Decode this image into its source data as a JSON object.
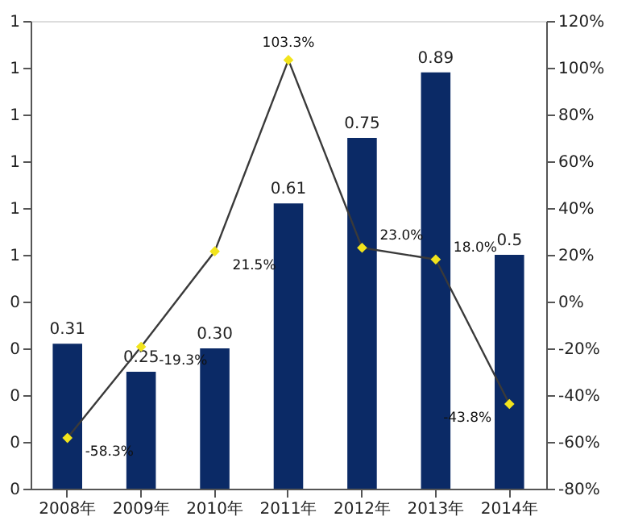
{
  "chart_data": {
    "type": "bar",
    "categories": [
      "2008年",
      "2009年",
      "2010年",
      "2011年",
      "2012年",
      "2013年",
      "2014年"
    ],
    "series": [
      {
        "color": "#0b2a66",
        "values": [
          0.31,
          0.25,
          0.3,
          0.61,
          0.75,
          0.89,
          0.5
        ],
        "value_labels": [
          "0.31",
          "0.25",
          "0.30",
          "0.61",
          "0.75",
          "0.89",
          "0.5"
        ]
      },
      {
        "type": "line",
        "axis": "y2",
        "color": "#3a3a3a",
        "colors": [
          "#f2e41c",
          "#f2e41c",
          "#f2e41c",
          "#f2e41c",
          "#f2e41c",
          "#f2e41c",
          "#f2e41c"
        ],
        "marker": "diamond",
        "values": [
          -58.3,
          -19.3,
          21.5,
          103.3,
          23.0,
          18.0,
          -43.8
        ],
        "value_labels": [
          "-58.3%",
          "-19.3%",
          "21.5%",
          "103.3%",
          "23.0%",
          "18.0%",
          "-43.8%"
        ]
      }
    ],
    "ylim": [
      0,
      1.0
    ],
    "yticks": [
      0,
      {
        "value": 0.1,
        "label": "0"
      },
      {
        "value": 0.2,
        "label": "0"
      },
      {
        "value": 0.3,
        "label": "0"
      },
      {
        "value": 0.4,
        "label": "0"
      },
      {
        "value": 0.5,
        "label": "1"
      },
      {
        "value": 0.6,
        "label": "1"
      },
      {
        "value": 0.7,
        "label": "1"
      },
      {
        "value": 0.8,
        "label": "1"
      },
      {
        "value": 0.9,
        "label": "1"
      },
      {
        "value": 1.0,
        "label": "1"
      }
    ],
    "y2lim": [
      -80,
      120
    ],
    "y2ticks": [
      {
        "value": -80,
        "label": "-80%"
      },
      {
        "value": -60,
        "label": "-60%"
      },
      {
        "value": -40,
        "label": "-40%"
      },
      {
        "value": -20,
        "label": "-20%"
      },
      {
        "value": 0,
        "label": "0%"
      },
      {
        "value": 20,
        "label": "20%"
      },
      {
        "value": 40,
        "label": "40%"
      },
      {
        "value": 60,
        "label": "60%"
      },
      {
        "value": 80,
        "label": "80%"
      },
      {
        "value": 100,
        "label": "100%"
      },
      {
        "value": 120,
        "label": "120%"
      }
    ],
    "grid": false
  }
}
